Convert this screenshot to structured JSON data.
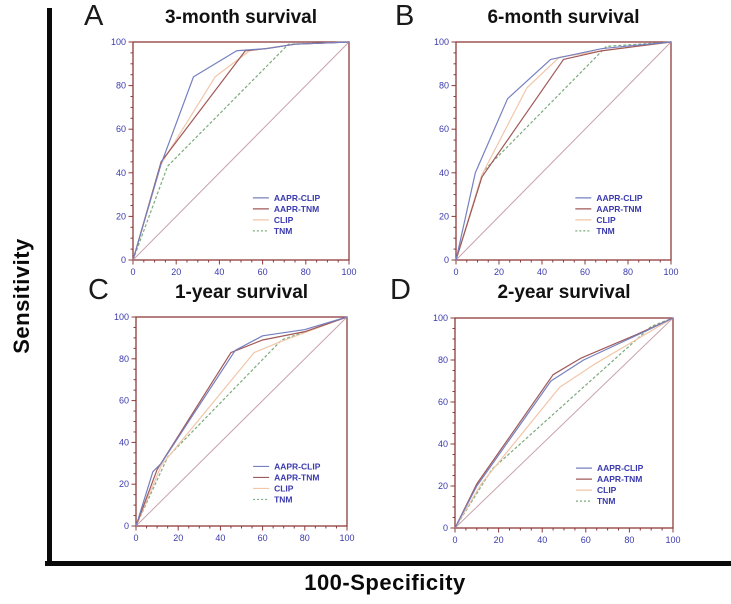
{
  "figure": {
    "xlabel": "100-Specificity",
    "ylabel": "Sensitivity"
  },
  "colors": {
    "axis_frame": "#8e3b3b",
    "tick_label": "#3a3aad",
    "legend_text": "#3a3aad",
    "reference_line": "#c9a2ac",
    "series": {
      "AAPR-CLIP": "#7580c0",
      "AAPR-TNM": "#a05858",
      "CLIP": "#f2c6a9",
      "TNM": "#7cab7c"
    }
  },
  "chart_data": [
    {
      "type": "line",
      "letter": "A",
      "title": "3-month survival",
      "xlim": [
        0,
        100
      ],
      "ylim": [
        0,
        100
      ],
      "xticks": [
        0,
        20,
        40,
        60,
        80,
        100
      ],
      "yticks": [
        0,
        20,
        40,
        60,
        80,
        100
      ],
      "legend_position": "lower-right",
      "reference_diagonal": [
        [
          0,
          0
        ],
        [
          100,
          100
        ]
      ],
      "legend": [
        "AAPR-CLIP",
        "AAPR-TNM",
        "CLIP",
        "TNM"
      ],
      "series": [
        {
          "name": "AAPR-CLIP",
          "style": "solid",
          "points": [
            [
              0,
              0
            ],
            [
              13,
              44
            ],
            [
              28,
              84
            ],
            [
              48,
              96
            ],
            [
              62,
              97
            ],
            [
              75,
              99
            ],
            [
              100,
              100
            ]
          ]
        },
        {
          "name": "AAPR-TNM",
          "style": "solid",
          "points": [
            [
              0,
              0
            ],
            [
              13,
              45
            ],
            [
              52,
              96
            ],
            [
              62,
              97
            ],
            [
              75,
              99
            ],
            [
              100,
              100
            ]
          ]
        },
        {
          "name": "CLIP",
          "style": "solid",
          "points": [
            [
              0,
              0
            ],
            [
              13,
              44
            ],
            [
              38,
              84
            ],
            [
              54,
              96
            ],
            [
              75,
              99
            ],
            [
              100,
              100
            ]
          ]
        },
        {
          "name": "TNM",
          "style": "dashed",
          "points": [
            [
              0,
              0
            ],
            [
              16,
              43
            ],
            [
              72,
              99
            ],
            [
              100,
              100
            ]
          ]
        }
      ]
    },
    {
      "type": "line",
      "letter": "B",
      "title": "6-month survival",
      "xlim": [
        0,
        100
      ],
      "ylim": [
        0,
        100
      ],
      "xticks": [
        0,
        20,
        40,
        60,
        80,
        100
      ],
      "yticks": [
        0,
        20,
        40,
        60,
        80,
        100
      ],
      "legend_position": "lower-right",
      "reference_diagonal": [
        [
          0,
          0
        ],
        [
          100,
          100
        ]
      ],
      "legend": [
        "AAPR-CLIP",
        "AAPR-TNM",
        "CLIP",
        "TNM"
      ],
      "series": [
        {
          "name": "AAPR-CLIP",
          "style": "solid",
          "points": [
            [
              0,
              0
            ],
            [
              9,
              40
            ],
            [
              24,
              74
            ],
            [
              44,
              92
            ],
            [
              68,
              97
            ],
            [
              100,
              100
            ]
          ]
        },
        {
          "name": "AAPR-TNM",
          "style": "solid",
          "points": [
            [
              0,
              0
            ],
            [
              12,
              38
            ],
            [
              50,
              92
            ],
            [
              68,
              96
            ],
            [
              100,
              100
            ]
          ]
        },
        {
          "name": "CLIP",
          "style": "solid",
          "points": [
            [
              0,
              0
            ],
            [
              12,
              39
            ],
            [
              33,
              79
            ],
            [
              48,
              93
            ],
            [
              68,
              96
            ],
            [
              100,
              100
            ]
          ]
        },
        {
          "name": "TNM",
          "style": "dashed",
          "points": [
            [
              0,
              0
            ],
            [
              13,
              41
            ],
            [
              70,
              98
            ],
            [
              100,
              100
            ]
          ]
        }
      ]
    },
    {
      "type": "line",
      "letter": "C",
      "title": "1-year survival",
      "xlim": [
        0,
        100
      ],
      "ylim": [
        0,
        100
      ],
      "xticks": [
        0,
        20,
        40,
        60,
        80,
        100
      ],
      "yticks": [
        0,
        20,
        40,
        60,
        80,
        100
      ],
      "legend_position": "lower-right",
      "reference_diagonal": [
        [
          0,
          0
        ],
        [
          100,
          100
        ]
      ],
      "legend": [
        "AAPR-CLIP",
        "AAPR-TNM",
        "CLIP",
        "TNM"
      ],
      "series": [
        {
          "name": "AAPR-CLIP",
          "style": "solid",
          "points": [
            [
              0,
              0
            ],
            [
              8,
              26
            ],
            [
              12,
              30
            ],
            [
              47,
              84
            ],
            [
              60,
              91
            ],
            [
              80,
              94
            ],
            [
              100,
              100
            ]
          ]
        },
        {
          "name": "AAPR-TNM",
          "style": "solid",
          "points": [
            [
              0,
              0
            ],
            [
              10,
              27
            ],
            [
              45,
              83
            ],
            [
              60,
              89
            ],
            [
              80,
              93
            ],
            [
              100,
              100
            ]
          ]
        },
        {
          "name": "CLIP",
          "style": "solid",
          "points": [
            [
              0,
              0
            ],
            [
              12,
              29
            ],
            [
              56,
              83
            ],
            [
              68,
              88
            ],
            [
              100,
              100
            ]
          ]
        },
        {
          "name": "TNM",
          "style": "dashed",
          "points": [
            [
              0,
              0
            ],
            [
              15,
              33
            ],
            [
              69,
              89
            ],
            [
              100,
              100
            ]
          ]
        }
      ]
    },
    {
      "type": "line",
      "letter": "D",
      "title": "2-year survival",
      "xlim": [
        0,
        100
      ],
      "ylim": [
        0,
        100
      ],
      "xticks": [
        0,
        20,
        40,
        60,
        80,
        100
      ],
      "yticks": [
        0,
        20,
        40,
        60,
        80,
        100
      ],
      "legend_position": "lower-right",
      "reference_diagonal": [
        [
          0,
          0
        ],
        [
          100,
          100
        ]
      ],
      "legend": [
        "AAPR-CLIP",
        "AAPR-TNM",
        "CLIP",
        "TNM"
      ],
      "series": [
        {
          "name": "AAPR-CLIP",
          "style": "solid",
          "points": [
            [
              0,
              0
            ],
            [
              10,
              20
            ],
            [
              44,
              70
            ],
            [
              59,
              80
            ],
            [
              88,
              94
            ],
            [
              100,
              100
            ]
          ]
        },
        {
          "name": "AAPR-TNM",
          "style": "solid",
          "points": [
            [
              0,
              0
            ],
            [
              10,
              21
            ],
            [
              45,
              73
            ],
            [
              58,
              81
            ],
            [
              83,
              92
            ],
            [
              100,
              100
            ]
          ]
        },
        {
          "name": "CLIP",
          "style": "solid",
          "points": [
            [
              0,
              0
            ],
            [
              12,
              21
            ],
            [
              48,
              67
            ],
            [
              64,
              78
            ],
            [
              100,
              100
            ]
          ]
        },
        {
          "name": "TNM",
          "style": "dashed",
          "points": [
            [
              0,
              0
            ],
            [
              17,
              28
            ],
            [
              90,
              96
            ],
            [
              100,
              100
            ]
          ]
        }
      ]
    }
  ]
}
